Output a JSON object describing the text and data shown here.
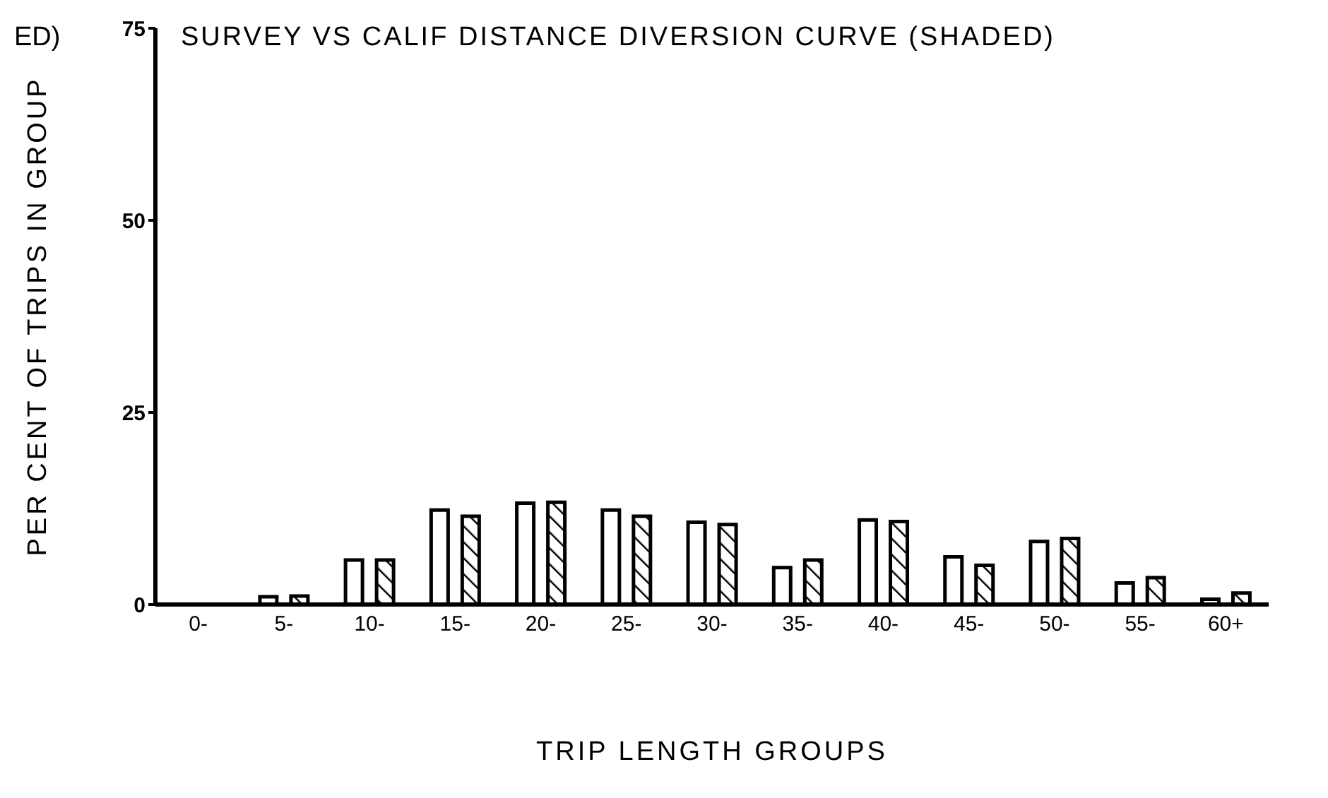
{
  "chart_data": {
    "type": "bar",
    "title": "SURVEY VS CALIF DISTANCE DIVERSION CURVE (SHADED)",
    "xlabel": "TRIP LENGTH GROUPS",
    "ylabel": "PER CENT OF TRIPS IN GROUP",
    "annotations": [
      "ED)"
    ],
    "categories": [
      "0-",
      "5-",
      "10-",
      "15-",
      "20-",
      "25-",
      "30-",
      "35-",
      "40-",
      "45-",
      "50-",
      "55-",
      "60+"
    ],
    "series": [
      {
        "color": "#ffffff",
        "values": [
          0,
          1.0,
          5.8,
          12.3,
          13.2,
          12.3,
          10.7,
          4.8,
          11.0,
          6.2,
          8.2,
          2.8,
          0.7
        ]
      },
      {
        "color": "#000000",
        "values": [
          0,
          1.1,
          5.8,
          11.5,
          13.3,
          11.5,
          10.4,
          5.8,
          10.8,
          5.1,
          8.6,
          3.5,
          1.5
        ]
      }
    ],
    "ylim": [
      0,
      75
    ],
    "yticks": [
      0,
      25,
      50,
      75
    ],
    "grid": false,
    "legend": false
  }
}
